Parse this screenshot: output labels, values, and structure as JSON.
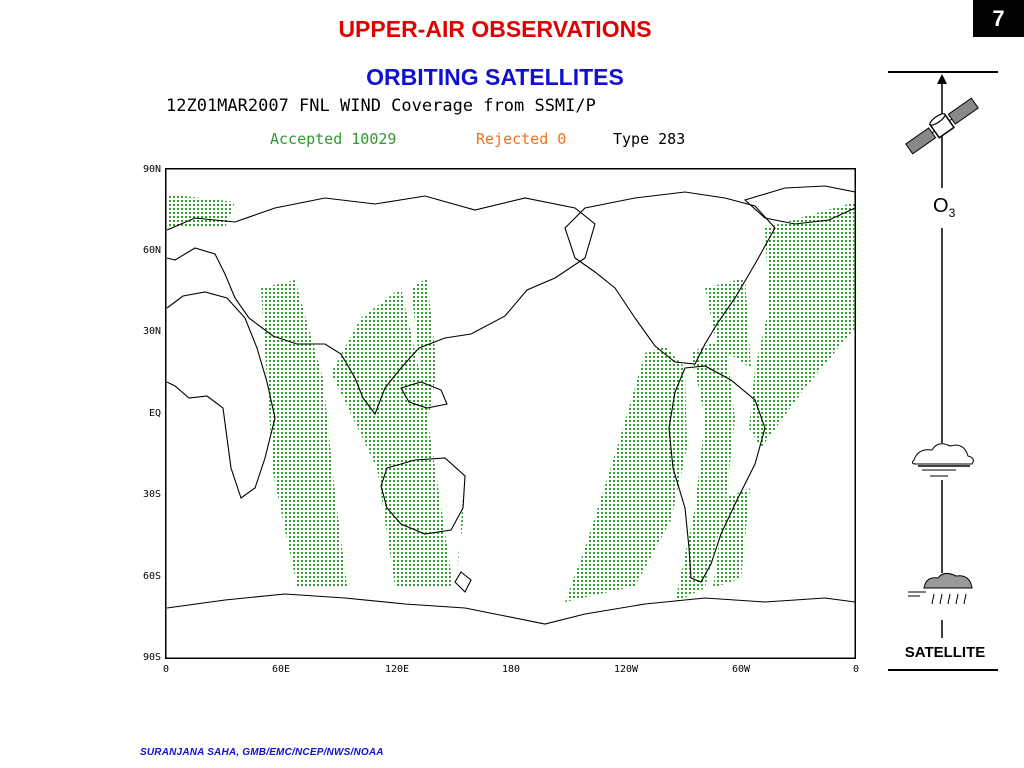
{
  "slide": {
    "number": "7",
    "title": "UPPER-AIR OBSERVATIONS",
    "subtitle": "ORBITING SATELLITES",
    "footer": "SURANJANA SAHA, GMB/EMC/NCEP/NWS/NOAA"
  },
  "map": {
    "title": "12Z01MAR2007 FNL WIND Coverage from SSMI/P",
    "accepted_label": "Accepted 10029",
    "rejected_label": "Rejected 0",
    "type_label": "Type 283",
    "lat_labels": [
      "90N",
      "60N",
      "30N",
      "EQ",
      "30S",
      "60S",
      "90S"
    ],
    "lon_labels": [
      "0",
      "60E",
      "120E",
      "180",
      "120W",
      "60W",
      "0"
    ],
    "colors": {
      "accepted": "#2e9a2e",
      "rejected": "#f07020",
      "coastline": "#000000"
    }
  },
  "diagram": {
    "o3_label": "O",
    "o3_subscript": "3",
    "satellite_label": "SATELLITE",
    "icons": [
      "satellite-icon",
      "cloud-icon",
      "rain-cloud-icon",
      "arrow-up-icon"
    ]
  },
  "colors": {
    "title": "#e00000",
    "subtitle": "#1010d0",
    "footer": "#1010d0"
  }
}
